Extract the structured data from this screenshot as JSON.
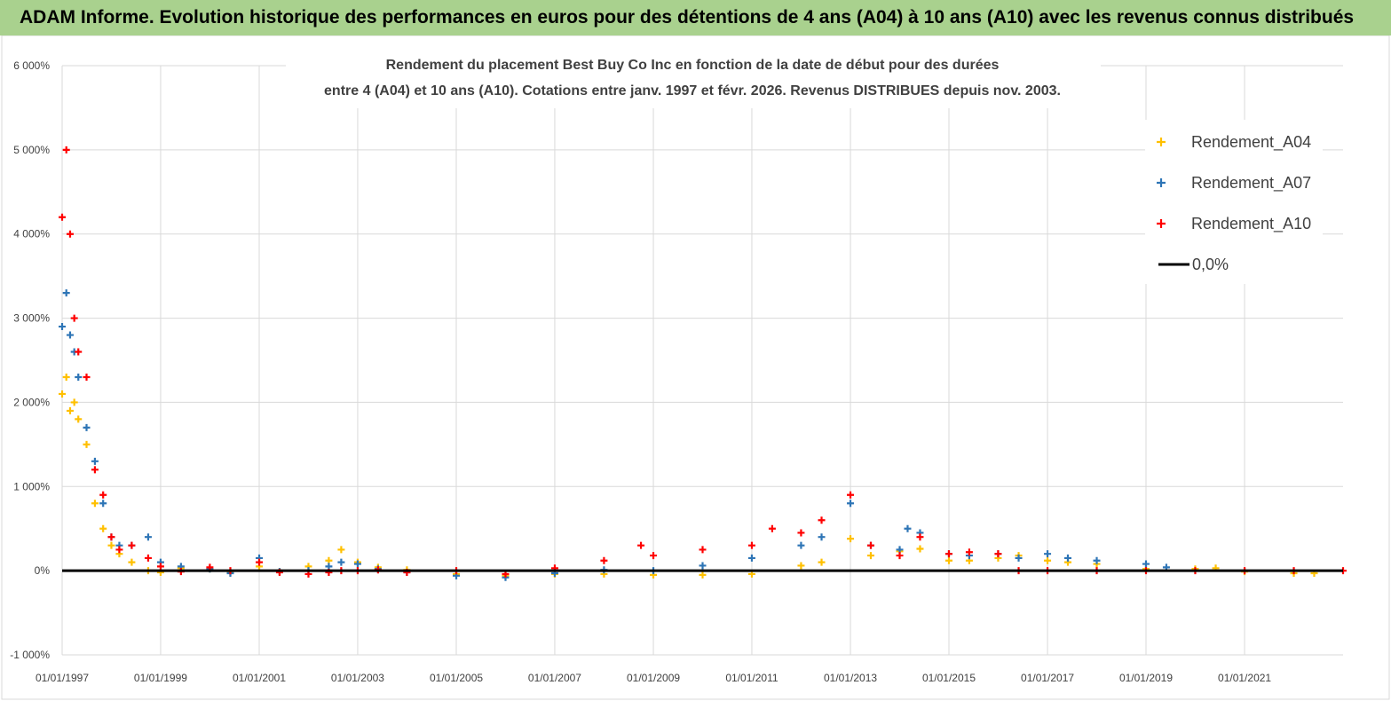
{
  "header": {
    "title": "ADAM Informe. Evolution historique des performances en euros pour des détentions de 4 ans (A04) à 10 ans (A10) avec les revenus connus distribués"
  },
  "colors": {
    "banner": "#a9d18e",
    "A04": "#ffc000",
    "A07": "#2e75b6",
    "A10": "#ff0000",
    "zero_line": "#000000",
    "grid": "#d9d9d9"
  },
  "chart_data": {
    "type": "scatter",
    "title_line1": "Rendement du placement Best Buy Co Inc en fonction de la date de début pour des durées",
    "title_line2": "entre 4 (A04) et 10 ans (A10). Cotations entre janv. 1997 et févr. 2026. Revenus DISTRIBUES depuis nov. 2003.",
    "xlabel": "",
    "ylabel": "",
    "x_unit": "date",
    "xlim": [
      "1997-01-01",
      "2023-01-01"
    ],
    "ylim": [
      -1000,
      6000
    ],
    "x_ticks": [
      "01/01/1997",
      "01/01/1999",
      "01/01/2001",
      "01/01/2003",
      "01/01/2005",
      "01/01/2007",
      "01/01/2009",
      "01/01/2011",
      "01/01/2013",
      "01/01/2015",
      "01/01/2017",
      "01/01/2019",
      "01/01/2021"
    ],
    "y_ticks": [
      {
        "value": -1000,
        "label": "-1 000%"
      },
      {
        "value": 0,
        "label": "0%"
      },
      {
        "value": 1000,
        "label": "1 000%"
      },
      {
        "value": 2000,
        "label": "2 000%"
      },
      {
        "value": 3000,
        "label": "3 000%"
      },
      {
        "value": 4000,
        "label": "4 000%"
      },
      {
        "value": 5000,
        "label": "5 000%"
      },
      {
        "value": 6000,
        "label": "6 000%"
      }
    ],
    "grid": true,
    "legend_position": "top-right",
    "legend": [
      "Rendement_A04",
      "Rendement_A07",
      "Rendement_A10",
      "0,0%"
    ],
    "series": [
      {
        "name": "Rendement_A04",
        "marker": "+",
        "color": "#ffc000",
        "x": [
          "1997-01-01",
          "1997-02-01",
          "1997-03-01",
          "1997-04-01",
          "1997-05-01",
          "1997-07-01",
          "1997-09-01",
          "1997-11-01",
          "1998-01-01",
          "1998-03-01",
          "1998-06-01",
          "1998-10-01",
          "1999-01-01",
          "1999-06-01",
          "2000-01-01",
          "2000-06-01",
          "2001-01-01",
          "2001-06-01",
          "2002-01-01",
          "2002-06-01",
          "2002-09-01",
          "2003-01-01",
          "2003-06-01",
          "2004-01-01",
          "2005-01-01",
          "2006-01-01",
          "2007-01-01",
          "2008-01-01",
          "2009-01-01",
          "2010-01-01",
          "2011-01-01",
          "2012-01-01",
          "2012-06-01",
          "2013-01-01",
          "2013-06-01",
          "2014-01-01",
          "2014-06-01",
          "2015-01-01",
          "2015-06-01",
          "2016-01-01",
          "2016-06-01",
          "2017-01-01",
          "2017-06-01",
          "2018-01-01",
          "2019-01-01",
          "2020-01-01",
          "2020-06-01",
          "2021-01-01",
          "2022-01-01",
          "2022-06-01"
        ],
        "y": [
          2100,
          2300,
          1900,
          2000,
          1800,
          1500,
          800,
          500,
          300,
          200,
          100,
          0,
          -20,
          30,
          20,
          -20,
          50,
          -10,
          50,
          120,
          250,
          100,
          40,
          10,
          -40,
          -60,
          -40,
          -40,
          -50,
          -50,
          -40,
          60,
          100,
          380,
          180,
          230,
          260,
          120,
          120,
          150,
          180,
          120,
          100,
          80,
          20,
          20,
          30,
          -10,
          -30,
          -30
        ]
      },
      {
        "name": "Rendement_A07",
        "marker": "+",
        "color": "#2e75b6",
        "x": [
          "1997-01-01",
          "1997-02-01",
          "1997-03-01",
          "1997-04-01",
          "1997-05-01",
          "1997-07-01",
          "1997-09-01",
          "1997-11-01",
          "1998-01-01",
          "1998-03-01",
          "1998-06-01",
          "1998-10-01",
          "1999-01-01",
          "1999-06-01",
          "2000-01-01",
          "2000-06-01",
          "2001-01-01",
          "2001-06-01",
          "2002-01-01",
          "2002-06-01",
          "2002-09-01",
          "2003-01-01",
          "2003-06-01",
          "2004-01-01",
          "2005-01-01",
          "2006-01-01",
          "2007-01-01",
          "2008-01-01",
          "2009-01-01",
          "2010-01-01",
          "2011-01-01",
          "2012-01-01",
          "2012-06-01",
          "2013-01-01",
          "2013-06-01",
          "2014-01-01",
          "2014-03-01",
          "2014-06-01",
          "2015-01-01",
          "2015-06-01",
          "2016-01-01",
          "2016-06-01",
          "2017-01-01",
          "2017-06-01",
          "2018-01-01",
          "2019-01-01",
          "2019-06-01"
        ],
        "y": [
          2900,
          3300,
          2800,
          2600,
          2300,
          1700,
          1300,
          800,
          400,
          300,
          300,
          400,
          100,
          50,
          20,
          -30,
          150,
          -10,
          0,
          50,
          100,
          80,
          20,
          -20,
          -60,
          -80,
          -30,
          10,
          0,
          60,
          150,
          300,
          400,
          800,
          300,
          250,
          500,
          450,
          200,
          180,
          200,
          150,
          200,
          150,
          120,
          80,
          40
        ]
      },
      {
        "name": "Rendement_A10",
        "marker": "+",
        "color": "#ff0000",
        "x": [
          "1997-01-01",
          "1997-02-01",
          "1997-03-01",
          "1997-04-01",
          "1997-05-01",
          "1997-07-01",
          "1997-09-01",
          "1997-11-01",
          "1998-01-01",
          "1998-03-01",
          "1998-06-01",
          "1998-10-01",
          "1999-01-01",
          "1999-06-01",
          "2000-01-01",
          "2000-06-01",
          "2001-01-01",
          "2001-06-01",
          "2002-01-01",
          "2002-06-01",
          "2002-09-01",
          "2003-01-01",
          "2003-06-01",
          "2004-01-01",
          "2005-01-01",
          "2006-01-01",
          "2007-01-01",
          "2008-01-01",
          "2008-10-01",
          "2009-01-01",
          "2010-01-01",
          "2011-01-01",
          "2011-06-01",
          "2012-01-01",
          "2012-06-01",
          "2013-01-01",
          "2013-06-01",
          "2014-01-01",
          "2014-06-01",
          "2015-01-01",
          "2015-06-01",
          "2016-01-01",
          "2016-06-01",
          "2017-01-01",
          "2018-01-01",
          "2019-01-01",
          "2020-01-01",
          "2021-01-01",
          "2022-01-01",
          "2023-01-01"
        ],
        "y": [
          4200,
          5000,
          4000,
          3000,
          2600,
          2300,
          1200,
          900,
          400,
          250,
          300,
          150,
          50,
          -10,
          40,
          0,
          100,
          -20,
          -40,
          -20,
          0,
          0,
          10,
          -20,
          0,
          -40,
          30,
          120,
          300,
          180,
          250,
          300,
          500,
          450,
          600,
          900,
          300,
          180,
          400,
          200,
          220,
          200,
          0,
          0,
          0,
          0,
          0,
          0,
          0,
          0
        ]
      }
    ],
    "reference_line": {
      "name": "0,0%",
      "y": 0,
      "color": "#000000"
    }
  }
}
